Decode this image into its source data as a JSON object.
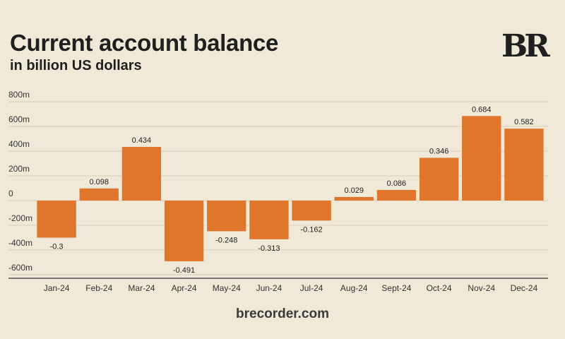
{
  "header": {
    "title": "Current account balance",
    "subtitle": "in billion US dollars",
    "logo": "BR"
  },
  "footer": {
    "source": "brecorder.com"
  },
  "colors": {
    "bar": "#e0762b",
    "grid": "#d7cdb9",
    "background": "#f1e9d7",
    "axis": "#555555"
  },
  "chart_data": {
    "type": "bar",
    "title": "Current account balance",
    "subtitle": "in billion US dollars",
    "xlabel": "",
    "ylabel": "",
    "categories": [
      "Jan-24",
      "Feb-24",
      "Mar-24",
      "Apr-24",
      "May-24",
      "Jun-24",
      "Jul-24",
      "Aug-24",
      "Sept-24",
      "Oct-24",
      "Nov-24",
      "Dec-24"
    ],
    "values": [
      -0.3,
      0.098,
      0.434,
      -0.491,
      -0.248,
      -0.313,
      -0.162,
      0.029,
      0.086,
      0.346,
      0.684,
      0.582
    ],
    "value_labels": [
      "-0.3",
      "0.098",
      "0.434",
      "-0.491",
      "-0.248",
      "-0.313",
      "-0.162",
      "0.029",
      "0.086",
      "0.346",
      "0.684",
      "0.582"
    ],
    "ylim": [
      -0.6,
      0.8
    ],
    "yticks": [
      -0.6,
      -0.4,
      -0.2,
      0,
      0.2,
      0.4,
      0.6,
      0.8
    ],
    "ytick_labels": [
      "-600m",
      "-400m",
      "-200m",
      "0",
      "200m",
      "400m",
      "600m",
      "800m"
    ],
    "grid": true
  }
}
